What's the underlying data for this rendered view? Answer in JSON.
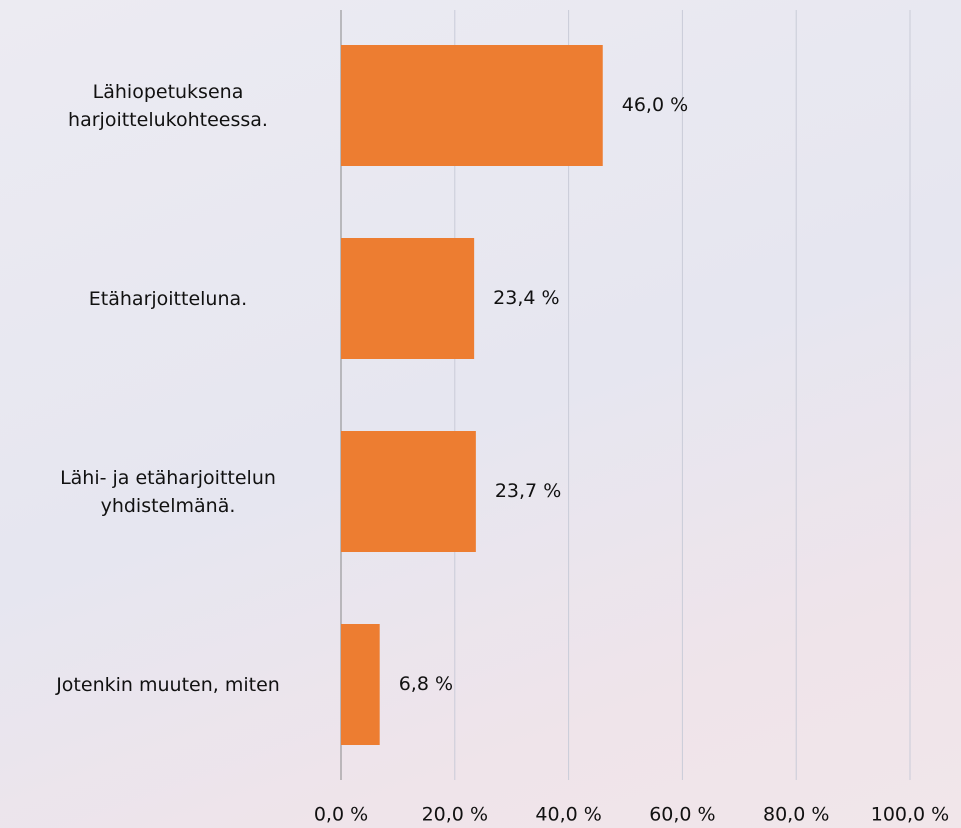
{
  "chart_data": {
    "type": "hbar",
    "categories": [
      "Lähiopetuksena harjoittelukohteessa.",
      "Etäharjoitteluna.",
      "Lähi- ja etäharjoittelun yhdistelmänä.",
      "Jotenkin muuten, miten"
    ],
    "values": [
      46.0,
      23.4,
      23.7,
      6.8
    ],
    "value_labels": [
      "46,0 %",
      "23,4 %",
      "23,7 %",
      "6,8 %"
    ],
    "color": "#ed7d31",
    "xlim": [
      0,
      100
    ],
    "xticks": [
      {
        "value": 0,
        "label": "0,0 %"
      },
      {
        "value": 20,
        "label": "20,0 %"
      },
      {
        "value": 40,
        "label": "40,0 %"
      },
      {
        "value": 60,
        "label": "60,0 %"
      },
      {
        "value": 80,
        "label": "80,0 %"
      },
      {
        "value": 100,
        "label": "100,0 %"
      }
    ],
    "grid": true
  }
}
